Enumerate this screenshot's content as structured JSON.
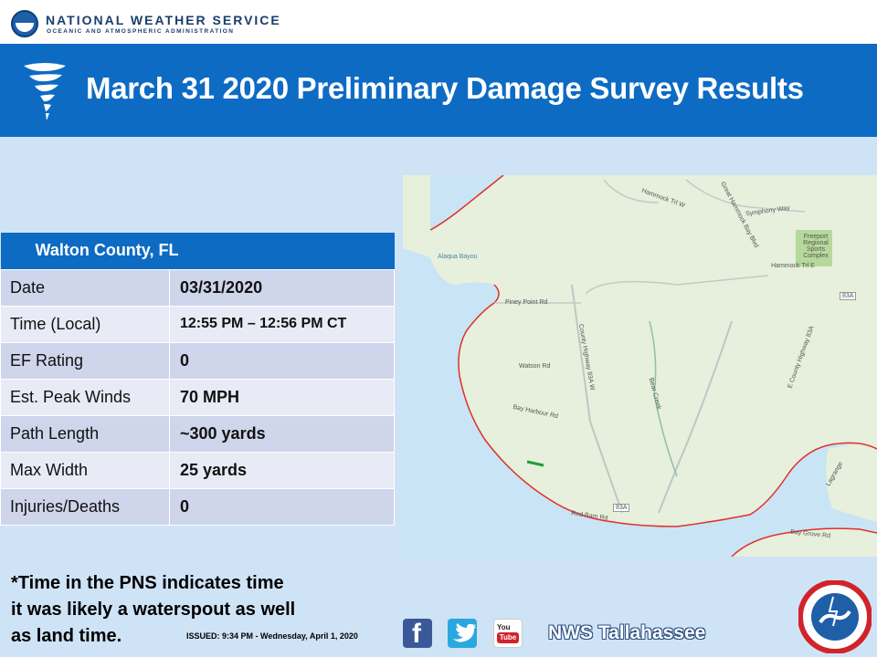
{
  "header": {
    "agency": "NATIONAL WEATHER SERVICE",
    "agency_sub": "OCEANIC AND ATMOSPHERIC ADMINISTRATION",
    "logo_icon": "noaa-logo"
  },
  "banner": {
    "title": "March 31 2020 Preliminary Damage Survey Results",
    "icon": "tornado-icon",
    "color": "#0d6bc4"
  },
  "survey": {
    "county": "Walton County, FL",
    "rows": [
      {
        "label": "Date",
        "value": "03/31/2020"
      },
      {
        "label": "Time (Local)",
        "value": "12:55 PM – 12:56 PM CT"
      },
      {
        "label": "EF Rating",
        "value": "0"
      },
      {
        "label": "Est. Peak Winds",
        "value": "70 MPH"
      },
      {
        "label": "Path Length",
        "value": "~300 yards"
      },
      {
        "label": "Max Width",
        "value": "25 yards"
      },
      {
        "label": "Injuries/Deaths",
        "value": "0"
      }
    ]
  },
  "map": {
    "labels": {
      "bayou": "Alaqua Bayou",
      "piney_point": "Piney Point Rd",
      "watson": "Watson Rd",
      "bay_harbour": "Bay Harbour Rd",
      "county_hwy_w": "County Highway 83A W",
      "county_hwy_e": "E County Highway 83A",
      "bear_creek": "Bear Creek",
      "hammock_trl_w": "Hammock Trl W",
      "hammock_bay": "Great Hammock Bay Blvd",
      "symphony": "Symphony Way",
      "sports": "Freeport Regional Sports Complex",
      "hammock_trl_e": "Hammock Trl E",
      "red_barn": "Red Barn Rd",
      "bay_grove": "Bay Grove Rd",
      "lagrange": "Lagrange",
      "shield_1": "83A",
      "shield_2": "83A"
    },
    "colors": {
      "land": "#e6f0dc",
      "water": "#c9e4f5",
      "boundary": "#e0302b",
      "track": "#1c9e3a"
    }
  },
  "footer": {
    "footnote_line1": "*Time in the PNS indicates time",
    "footnote_line2": "it was likely a waterspout as well",
    "footnote_line3": "as land time.",
    "issued": "ISSUED: 9:34 PM - Wednesday, April 1, 2020",
    "youtube_label_1": "You",
    "youtube_label_2": "Tube",
    "office": "NWS Tallahassee",
    "social_icons": [
      "facebook-icon",
      "twitter-icon",
      "youtube-icon"
    ]
  }
}
